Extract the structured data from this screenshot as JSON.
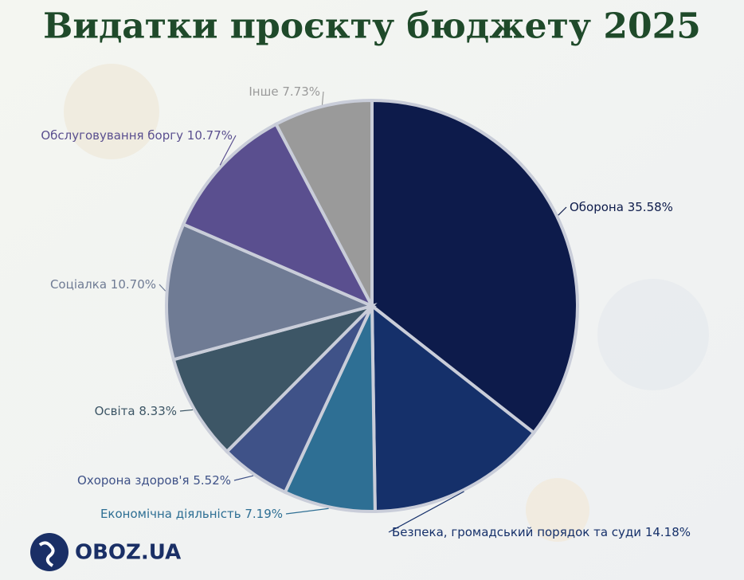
{
  "chart_data": {
    "type": "pie",
    "title": "Видатки проєкту бюджету 2025",
    "categories": [
      "Оборона",
      "Безпека, громадський порядок та суди",
      "Економічна діяльність",
      "Охорона здоров'я",
      "Освіта",
      "Соціалка",
      "Обслуговування боргу",
      "Інше"
    ],
    "values": [
      35.58,
      14.18,
      7.19,
      5.52,
      8.33,
      10.7,
      10.77,
      7.73
    ],
    "value_labels": [
      "35.58%",
      "14.18%",
      "7.19%",
      "5.52%",
      "8.33%",
      "10.70%",
      "10.77%",
      "7.73%"
    ],
    "colors": [
      "#0d1b4b",
      "#15306a",
      "#2e6f94",
      "#3f5288",
      "#3d5666",
      "#6f7b94",
      "#5a4f8f",
      "#9a9a9a"
    ],
    "label_colors": [
      "#0d1b4b",
      "#15306a",
      "#2e6f94",
      "#3f5288",
      "#3d5666",
      "#6f7b94",
      "#5a4f8f",
      "#9a9a9a"
    ]
  },
  "logo": "OBOZ.UA"
}
